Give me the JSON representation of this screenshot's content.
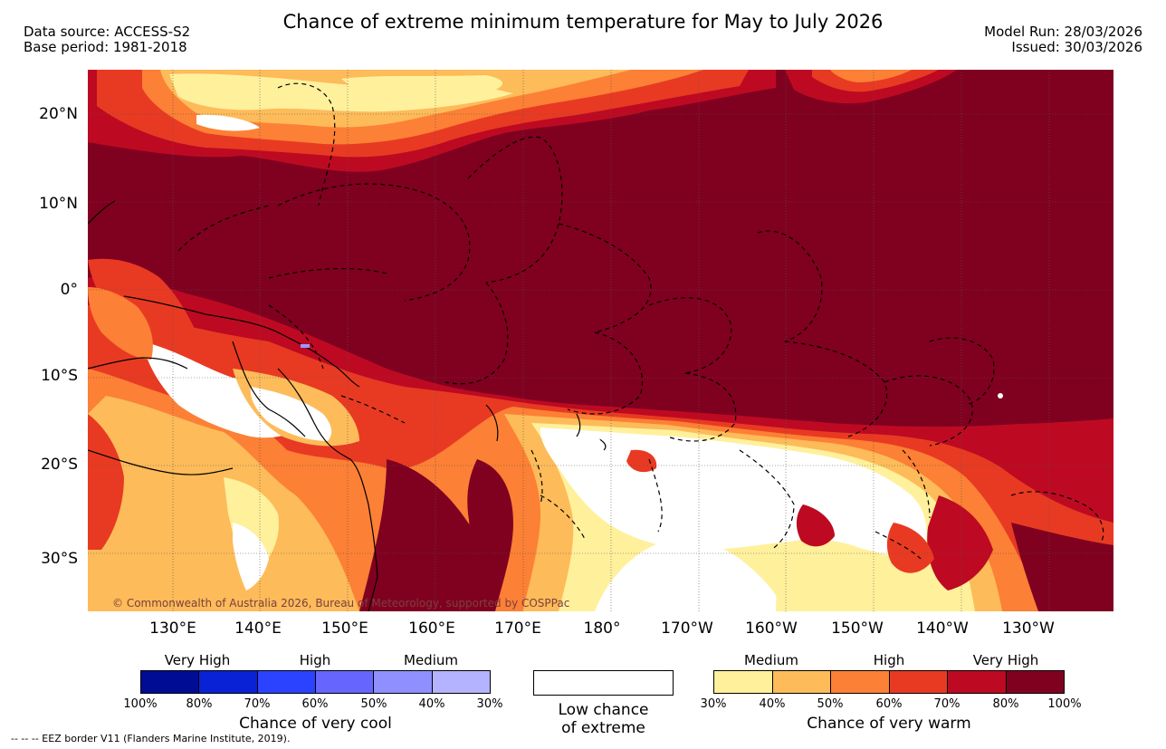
{
  "title": "Chance of extreme minimum temperature for May to July 2026",
  "header_left": {
    "data_source": "Data source: ACCESS-S2",
    "base_period": "Base period: 1981-2018"
  },
  "header_right": {
    "model_run": "Model Run: 28/03/2026",
    "issued": "Issued: 30/03/2026"
  },
  "lat_labels": [
    "20°N",
    "10°N",
    "0°",
    "10°S",
    "20°S",
    "30°S"
  ],
  "lon_labels": [
    "130°E",
    "140°E",
    "150°E",
    "160°E",
    "170°E",
    "180°",
    "170°W",
    "160°W",
    "150°W",
    "140°W",
    "130°W"
  ],
  "credit": "© Commonwealth of Australia 2026, Bureau of Meteorology, supported by COSPPac",
  "legend": {
    "cool": {
      "levels": [
        "Very High",
        "High",
        "Medium"
      ],
      "colors": [
        "#000c94",
        "#0a22d6",
        "#2b43ff",
        "#6666ff",
        "#8f8fff",
        "#b3b3ff"
      ],
      "ticks": [
        "100%",
        "80%",
        "70%",
        "60%",
        "50%",
        "40%",
        "30%"
      ],
      "caption": "Chance of very cool"
    },
    "neutral": {
      "caption_line1": "Low chance",
      "caption_line2": "of extreme",
      "color": "#ffffff"
    },
    "warm": {
      "levels": [
        "Medium",
        "High",
        "Very High"
      ],
      "colors": [
        "#fff09c",
        "#fdbb5a",
        "#fc8035",
        "#e83a22",
        "#bd0a22",
        "#800020"
      ],
      "ticks": [
        "30%",
        "40%",
        "50%",
        "60%",
        "70%",
        "80%",
        "100%"
      ],
      "caption": "Chance of very warm"
    }
  },
  "eez_note": "--  --  -- EEZ border V11 (Flanders Marine Institute, 2019)."
}
